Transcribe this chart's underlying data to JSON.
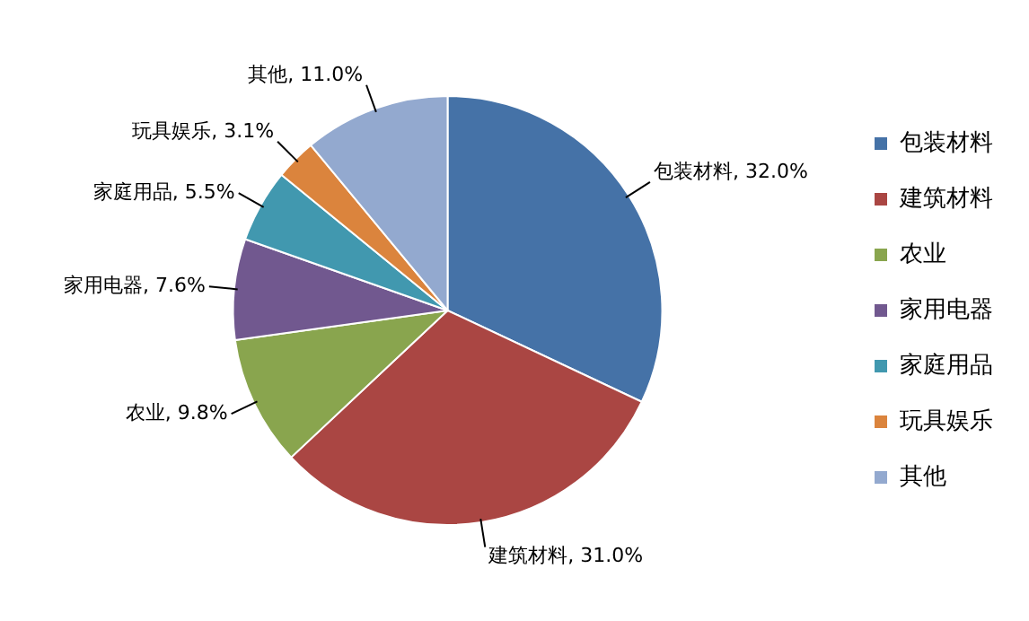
{
  "chart_data": {
    "type": "pie",
    "categories": [
      "包装材料",
      "建筑材料",
      "农业",
      "家用电器",
      "家庭用品",
      "玩具娱乐",
      "其他"
    ],
    "values": [
      32.0,
      31.0,
      9.8,
      7.6,
      5.5,
      3.1,
      11.0
    ],
    "value_labels": [
      "包装材料, 32.0%",
      "建筑材料, 31.0%",
      "农业, 9.8%",
      "家用电器, 7.6%",
      "家庭用品, 5.5%",
      "玩具娱乐, 3.1%",
      "其他, 11.0%"
    ],
    "colors": [
      "#4572a7",
      "#aa4643",
      "#89a54e",
      "#71588f",
      "#4198af",
      "#db843d",
      "#93a9cf"
    ],
    "legend": "right"
  }
}
